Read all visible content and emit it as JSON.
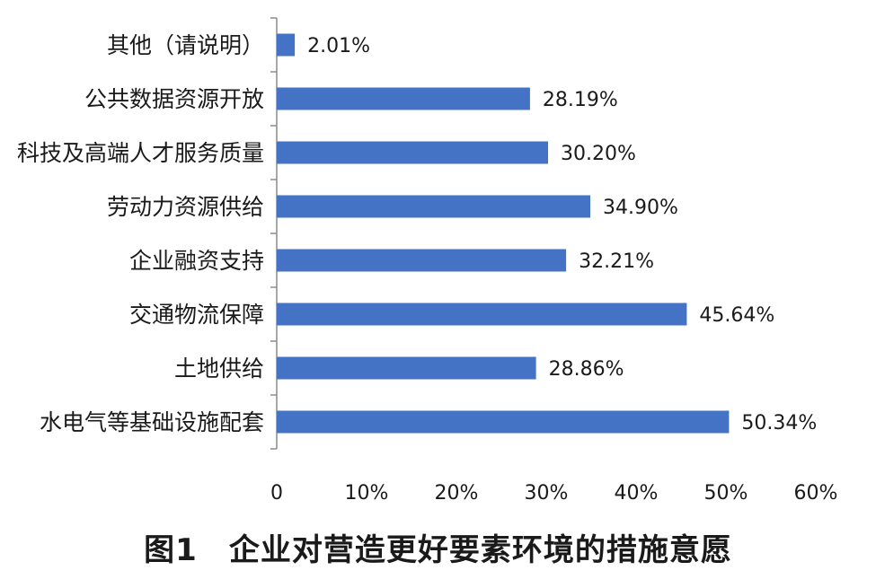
{
  "figure": {
    "caption": "图1　企业对营造更好要素环境的措施意愿"
  },
  "chart_data": {
    "type": "bar",
    "orientation": "horizontal",
    "title": "",
    "xlabel": "",
    "ylabel": "",
    "categories": [
      "其他（请说明）",
      "公共数据资源开放",
      "科技及高端人才服务质量",
      "劳动力资源供给",
      "企业融资支持",
      "交通物流保障",
      "土地供给",
      "水电气等基础设施配套"
    ],
    "values": [
      2.01,
      28.19,
      30.2,
      34.9,
      32.21,
      45.64,
      28.86,
      50.34
    ],
    "value_labels": [
      "2.01%",
      "28.19%",
      "30.20%",
      "34.90%",
      "32.21%",
      "45.64%",
      "28.86%",
      "50.34%"
    ],
    "xlim": [
      0,
      60
    ],
    "x_ticks": [
      0,
      10,
      20,
      30,
      40,
      50,
      60
    ],
    "x_tick_labels": [
      "0",
      "10%",
      "20%",
      "30%",
      "40%",
      "50%",
      "60%"
    ],
    "bar_color": "#4472c4",
    "grid": false,
    "legend": "none"
  }
}
